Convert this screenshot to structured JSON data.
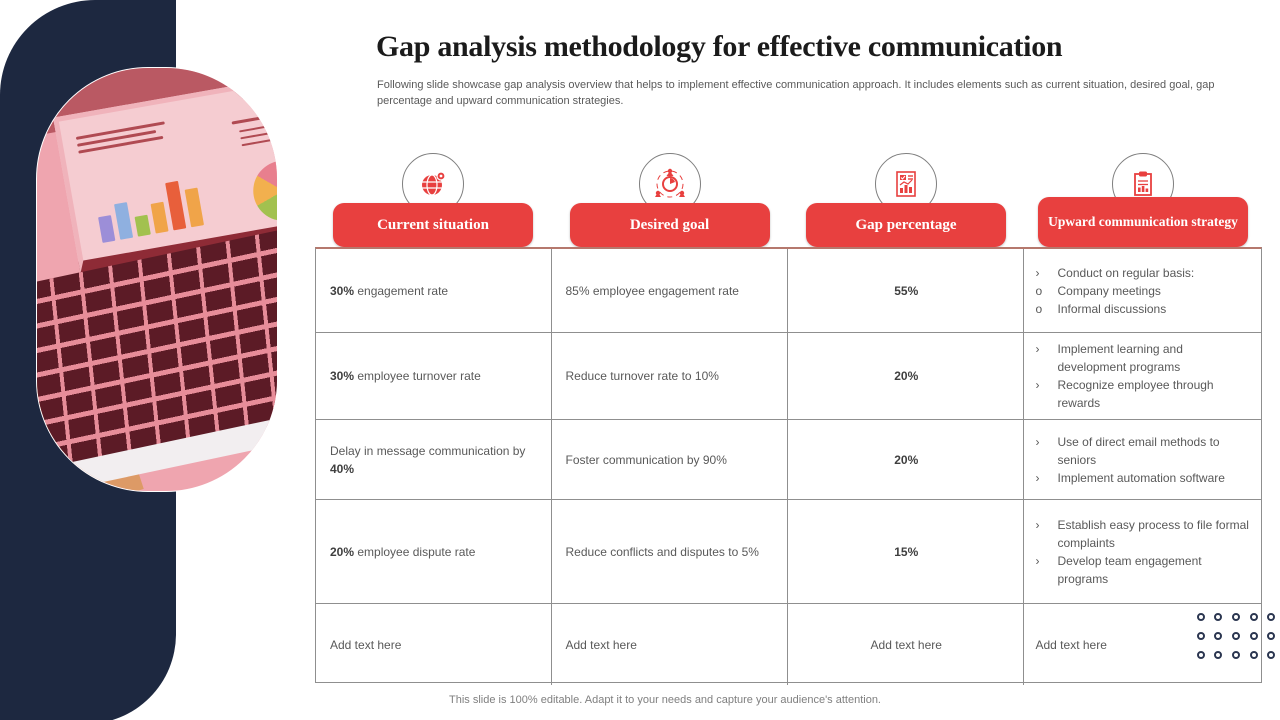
{
  "slide": {
    "title": "Gap analysis methodology for effective communication",
    "subtitle": "Following slide showcase gap analysis overview that helps to implement effective communication approach. It includes elements such as current situation, desired goal, gap percentage and upward communication strategies.",
    "footer": "This slide is 100% editable. Adapt it to your needs and capture your audience's attention."
  },
  "colors": {
    "accent_red": "#e8403f",
    "navy": "#1d2840",
    "pink": "#efa5af",
    "table_border": "#8f8f8f",
    "body_text": "#595959"
  },
  "table": {
    "headers": [
      {
        "label": "Current situation",
        "icon": "globe-pin-icon"
      },
      {
        "label": "Desired goal",
        "icon": "target-people-icon"
      },
      {
        "label": "Gap percentage",
        "icon": "report-chart-icon"
      },
      {
        "label": "Upward communication strategy",
        "icon": "clipboard-icon"
      }
    ],
    "rows": [
      {
        "height": 84,
        "current": {
          "pre": "",
          "bold": "30%",
          "post": " engagement rate"
        },
        "desired": "85% employee engagement rate",
        "gap": "55%",
        "gap_bold": true,
        "strategy": [
          {
            "marker": "›",
            "text": "Conduct on regular basis:"
          },
          {
            "marker": "o",
            "text": "Company meetings"
          },
          {
            "marker": "o",
            "text": "Informal discussions"
          }
        ],
        "placeholder": false
      },
      {
        "height": 87,
        "current": {
          "pre": "",
          "bold": "30%",
          "post": " employee turnover rate"
        },
        "desired": "Reduce turnover rate to 10%",
        "gap": "20%",
        "gap_bold": true,
        "strategy": [
          {
            "marker": "›",
            "text": "Implement learning and development programs"
          },
          {
            "marker": "›",
            "text": "Recognize employee through rewards"
          }
        ],
        "placeholder": false
      },
      {
        "height": 80,
        "current": {
          "pre": "Delay in message communication by ",
          "bold": "40%",
          "post": ""
        },
        "desired": "Foster communication by 90%",
        "gap": "20%",
        "gap_bold": true,
        "strategy": [
          {
            "marker": "›",
            "text": "Use of direct email methods to seniors"
          },
          {
            "marker": "›",
            "text": "Implement automation software"
          }
        ],
        "placeholder": false
      },
      {
        "height": 104,
        "current": {
          "pre": "",
          "bold": "20%",
          "post": " employee dispute rate"
        },
        "desired": "Reduce conflicts and disputes to 5%",
        "gap": "15%",
        "gap_bold": true,
        "strategy": [
          {
            "marker": "›",
            "text": "Establish easy process to file formal complaints"
          },
          {
            "marker": "›",
            "text": "Develop team engagement programs"
          }
        ],
        "placeholder": false
      },
      {
        "height": 81,
        "current": {
          "pre": "Add text here",
          "bold": "",
          "post": ""
        },
        "desired": "Add text here",
        "gap": "Add text here",
        "gap_bold": false,
        "strategy": [
          {
            "marker": "",
            "text": "Add text here"
          }
        ],
        "placeholder": true
      }
    ]
  },
  "decor": {
    "dots_rows": 3,
    "dots_cols": 5
  }
}
